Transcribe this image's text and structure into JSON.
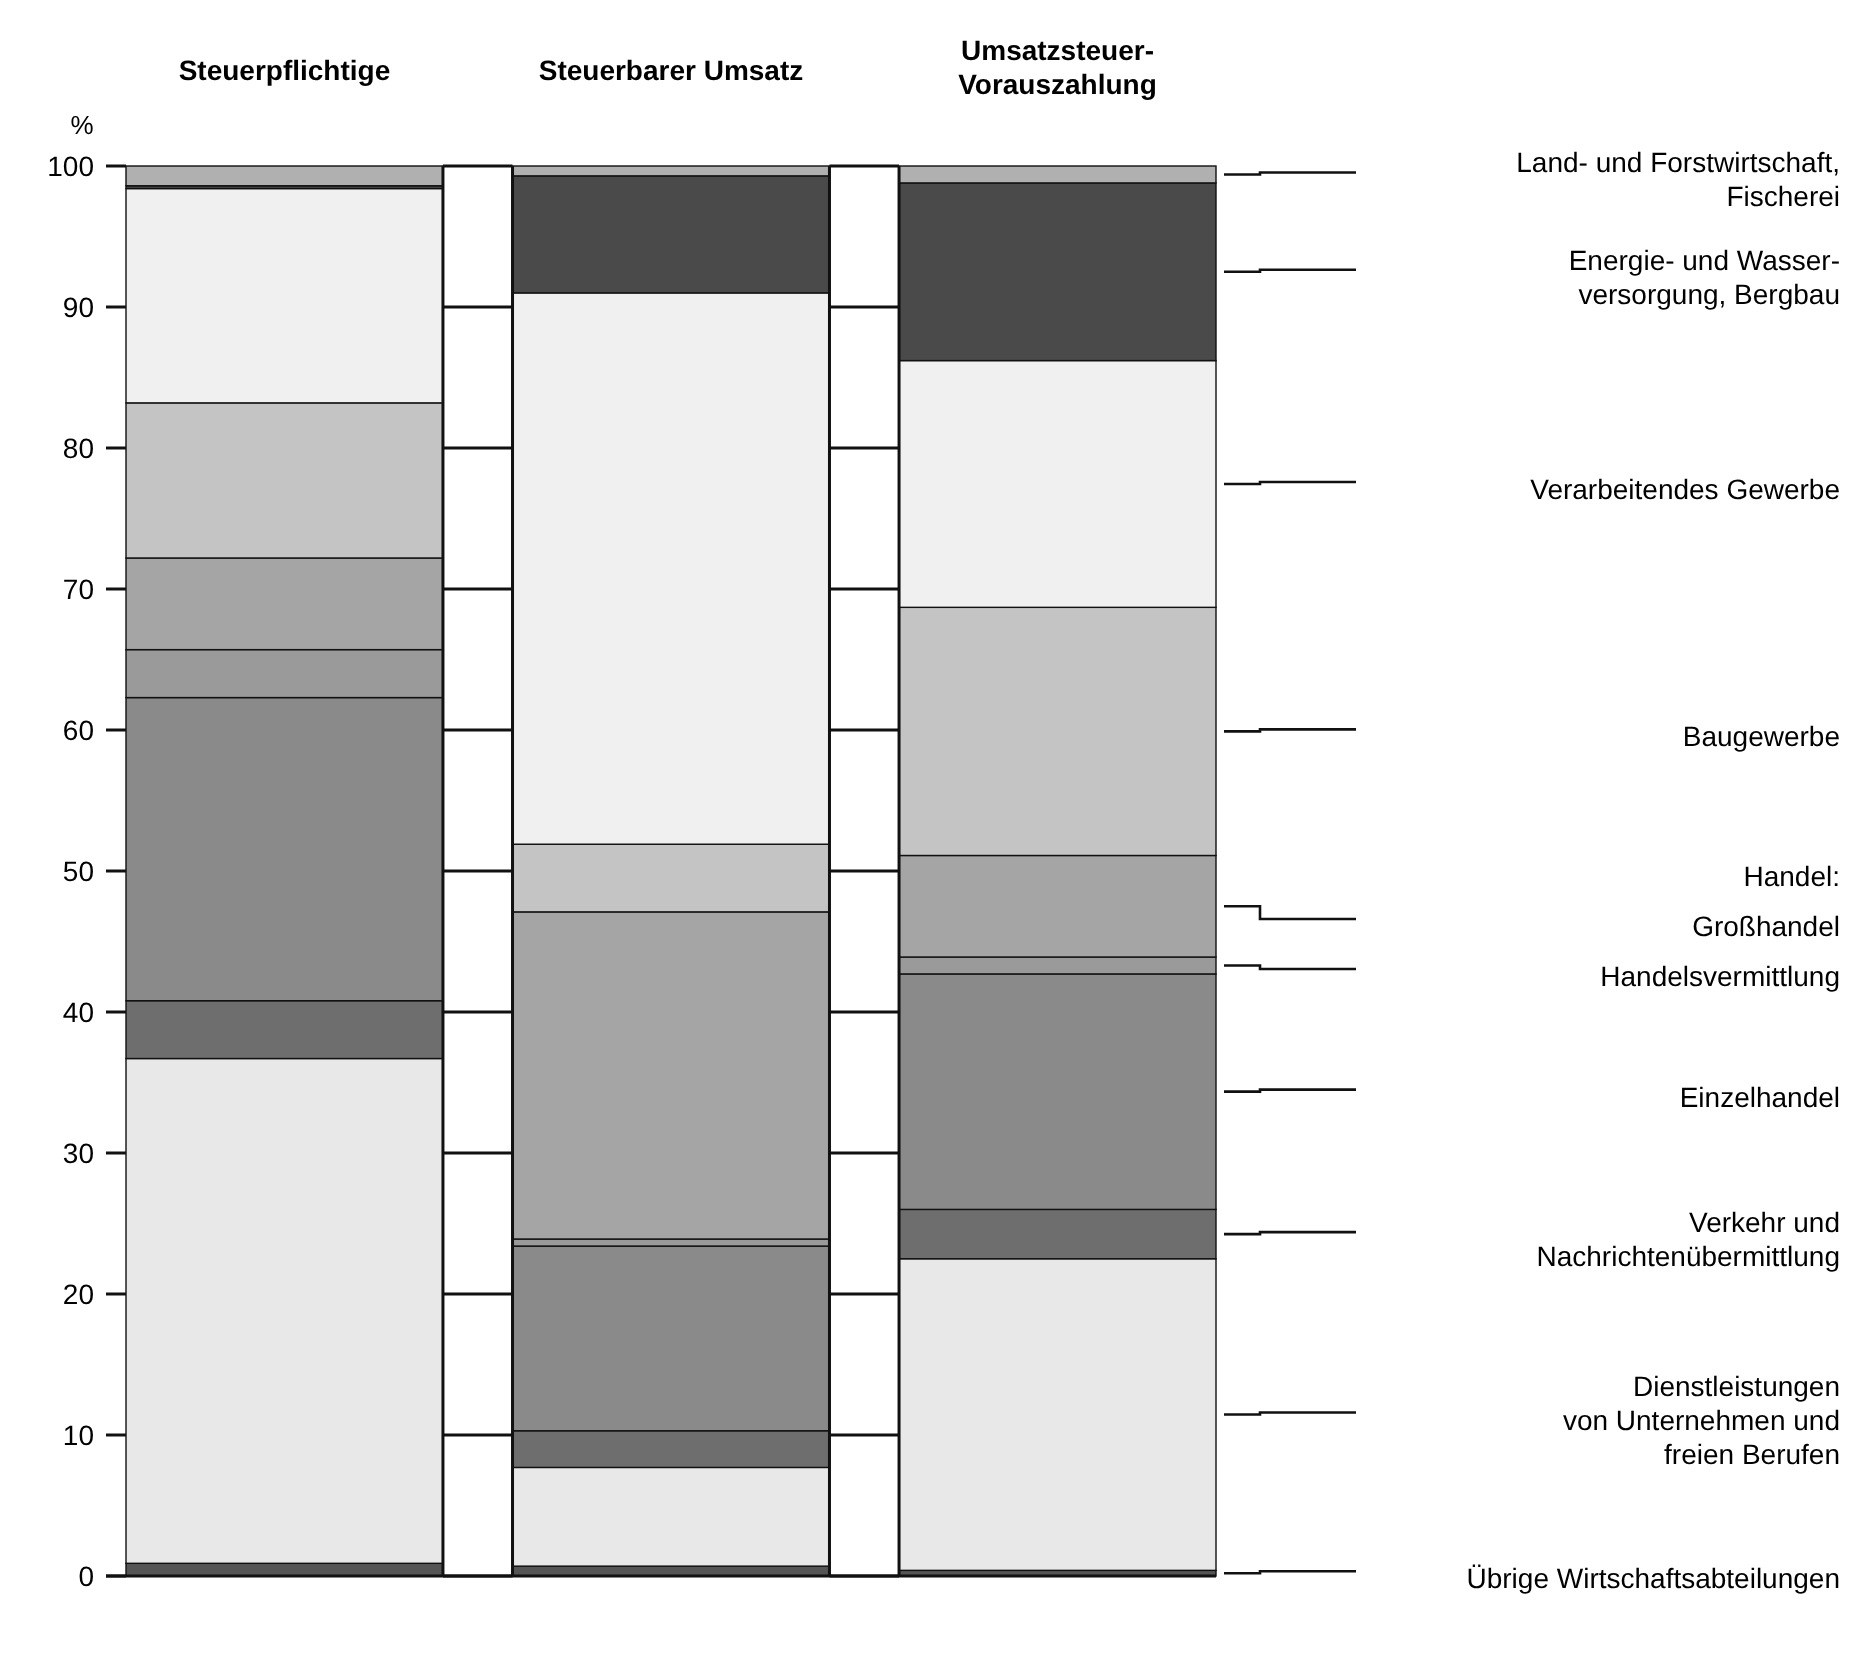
{
  "chart_data": {
    "type": "bar",
    "stacked": true,
    "ylabel": "%",
    "categories": [
      "Steuerpflichtige",
      "Steuerbarer Umsatz",
      "Umsatzsteuer-\nVorauszahlung"
    ],
    "ylim": [
      0,
      100
    ],
    "yticks": [
      0,
      10,
      20,
      30,
      40,
      50,
      60,
      70,
      80,
      90,
      100
    ],
    "legend": "right",
    "annotations": [
      "Handel:"
    ],
    "series": [
      {
        "name": "Übrige Wirtschaftsabteilungen",
        "color": "#555555",
        "values": [
          0.9,
          0.7,
          0.4
        ]
      },
      {
        "name": "Dienstleistungen\nvon Unternehmen und\nfreien Berufen",
        "color": "#e8e8e8",
        "values": [
          35.8,
          7.0,
          22.1
        ]
      },
      {
        "name": "Verkehr und\nNachrichtenübermittlung",
        "color": "#6e6e6e",
        "values": [
          4.1,
          2.6,
          3.5
        ]
      },
      {
        "name": "Einzelhandel",
        "color": "#8a8a8a",
        "values": [
          21.5,
          13.1,
          16.7
        ]
      },
      {
        "name": "Handelsvermittlung",
        "color": "#9a9a9a",
        "values": [
          3.4,
          0.5,
          1.2
        ]
      },
      {
        "name": "Großhandel",
        "color": "#a5a5a5",
        "values": [
          6.5,
          23.2,
          7.2
        ]
      },
      {
        "name": "Baugewerbe",
        "color": "#c4c4c4",
        "values": [
          11.0,
          4.8,
          17.6
        ]
      },
      {
        "name": "Verarbeitendes Gewerbe",
        "color": "#f0f0f0",
        "values": [
          15.2,
          39.1,
          17.5
        ]
      },
      {
        "name": "Energie- und Wasser-\nversorgung, Bergbau",
        "color": "#4a4a4a",
        "values": [
          0.2,
          8.3,
          12.6
        ]
      },
      {
        "name": "Land- und Forstwirtschaft,\nFischerei",
        "color": "#b0b0b0",
        "values": [
          1.4,
          0.7,
          1.2
        ]
      }
    ]
  }
}
